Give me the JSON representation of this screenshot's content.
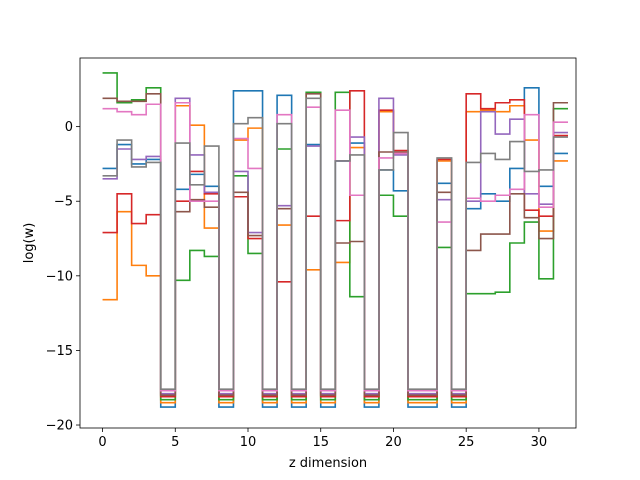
{
  "chart_data": {
    "type": "line",
    "style": "step-post",
    "xlabel": "z dimension",
    "ylabel": "log(w)",
    "xlim": [
      -1.55,
      32.55
    ],
    "ylim": [
      -20.2,
      4.6
    ],
    "xticks": [
      0,
      5,
      10,
      15,
      20,
      25,
      30
    ],
    "yticks": [
      -20,
      -15,
      -10,
      -5,
      0
    ],
    "grid": false,
    "x_edges": [
      0,
      1,
      2,
      3,
      4,
      5,
      6,
      7,
      8,
      9,
      10,
      11,
      12,
      13,
      14,
      15,
      16,
      17,
      18,
      19,
      20,
      21,
      22,
      23,
      24,
      25,
      26,
      27,
      28,
      29,
      30,
      31,
      32
    ],
    "series": [
      {
        "color": "#1f77b4",
        "values": [
          -2.8,
          -1.2,
          -2.5,
          -2.2,
          -18.8,
          -4.2,
          -3.2,
          -4.0,
          -18.8,
          2.4,
          2.4,
          -18.8,
          2.1,
          -18.8,
          -1.2,
          -18.8,
          -2.3,
          -1.1,
          -18.8,
          -2.9,
          -4.3,
          -18.8,
          -18.8,
          -3.8,
          -18.8,
          -5.5,
          -4.5,
          -5.0,
          -2.8,
          2.6,
          -4.0,
          -1.8
        ]
      },
      {
        "color": "#ff7f0e",
        "values": [
          -11.6,
          -5.7,
          -9.3,
          -10.0,
          -18.5,
          1.4,
          0.1,
          -6.8,
          -18.5,
          -0.9,
          -0.1,
          -18.5,
          -6.6,
          -18.5,
          -9.6,
          -18.5,
          -9.1,
          -1.4,
          -18.5,
          1.0,
          -1.8,
          -18.5,
          -18.5,
          -2.3,
          -18.5,
          1.0,
          1.1,
          1.0,
          1.4,
          -0.9,
          -7.0,
          -2.3
        ]
      },
      {
        "color": "#2ca02c",
        "values": [
          3.6,
          1.6,
          1.8,
          2.6,
          -18.3,
          -10.3,
          -8.3,
          -8.7,
          -18.3,
          -3.3,
          -8.5,
          -18.3,
          -1.5,
          -18.3,
          2.3,
          -18.3,
          2.3,
          -11.4,
          -18.3,
          -4.6,
          -6.0,
          -18.3,
          -18.3,
          -8.1,
          -18.3,
          -11.2,
          -11.2,
          -11.1,
          -7.8,
          -6.4,
          -10.2,
          1.2
        ]
      },
      {
        "color": "#d62728",
        "values": [
          -7.1,
          -4.5,
          -6.5,
          -5.9,
          -18.1,
          -5.0,
          -3.0,
          -4.5,
          -18.1,
          -4.7,
          -7.5,
          -18.1,
          -10.4,
          -18.1,
          -6.0,
          -18.1,
          -6.3,
          2.4,
          -18.1,
          1.1,
          -1.6,
          -18.1,
          -18.1,
          -2.2,
          -18.1,
          2.2,
          1.2,
          1.6,
          1.8,
          -5.6,
          -6.0,
          -0.6
        ]
      },
      {
        "color": "#9467bd",
        "values": [
          -3.5,
          -1.5,
          -2.2,
          -2.0,
          -17.9,
          1.9,
          -1.9,
          -4.4,
          -17.9,
          -3.0,
          -7.1,
          -17.9,
          -5.3,
          -17.9,
          -1.3,
          -17.9,
          -2.3,
          -0.7,
          -17.9,
          1.9,
          -1.9,
          -17.9,
          -17.9,
          -4.9,
          -17.9,
          -5.0,
          1.0,
          -0.5,
          0.5,
          -4.5,
          -5.2,
          -0.4
        ]
      },
      {
        "color": "#8c564b",
        "values": [
          1.9,
          1.7,
          1.7,
          2.2,
          -18.0,
          -5.7,
          -4.9,
          -5.4,
          -18.0,
          -4.4,
          -7.3,
          -18.0,
          -5.5,
          -18.0,
          2.2,
          -18.0,
          -7.8,
          -7.7,
          -18.0,
          -1.7,
          -1.7,
          -18.0,
          -18.0,
          -4.4,
          -18.0,
          -8.3,
          -7.2,
          -7.2,
          -4.5,
          -6.1,
          -7.5,
          1.6
        ]
      },
      {
        "color": "#e377c2",
        "values": [
          1.2,
          1.0,
          0.8,
          1.5,
          -17.7,
          1.6,
          -5.0,
          -5.0,
          -17.7,
          -0.8,
          -2.8,
          -17.7,
          0.8,
          -17.7,
          1.3,
          -17.7,
          1.1,
          -4.6,
          -17.7,
          -2.1,
          -1.8,
          -17.7,
          -17.7,
          -6.4,
          -17.7,
          -4.8,
          -5.0,
          -4.6,
          -4.2,
          0.8,
          -5.4,
          0.3
        ]
      },
      {
        "color": "#7f7f7f",
        "values": [
          -3.3,
          -0.9,
          -2.7,
          -2.4,
          -17.6,
          -1.1,
          -3.9,
          -1.3,
          -17.6,
          0.2,
          0.6,
          -17.6,
          0.2,
          -17.6,
          1.9,
          -17.6,
          -2.3,
          -1.9,
          -17.6,
          -2.9,
          -0.4,
          -17.6,
          -17.6,
          -2.1,
          -17.6,
          -2.4,
          -1.8,
          -2.2,
          -1.0,
          -3.0,
          -2.9,
          -0.7
        ]
      }
    ]
  }
}
